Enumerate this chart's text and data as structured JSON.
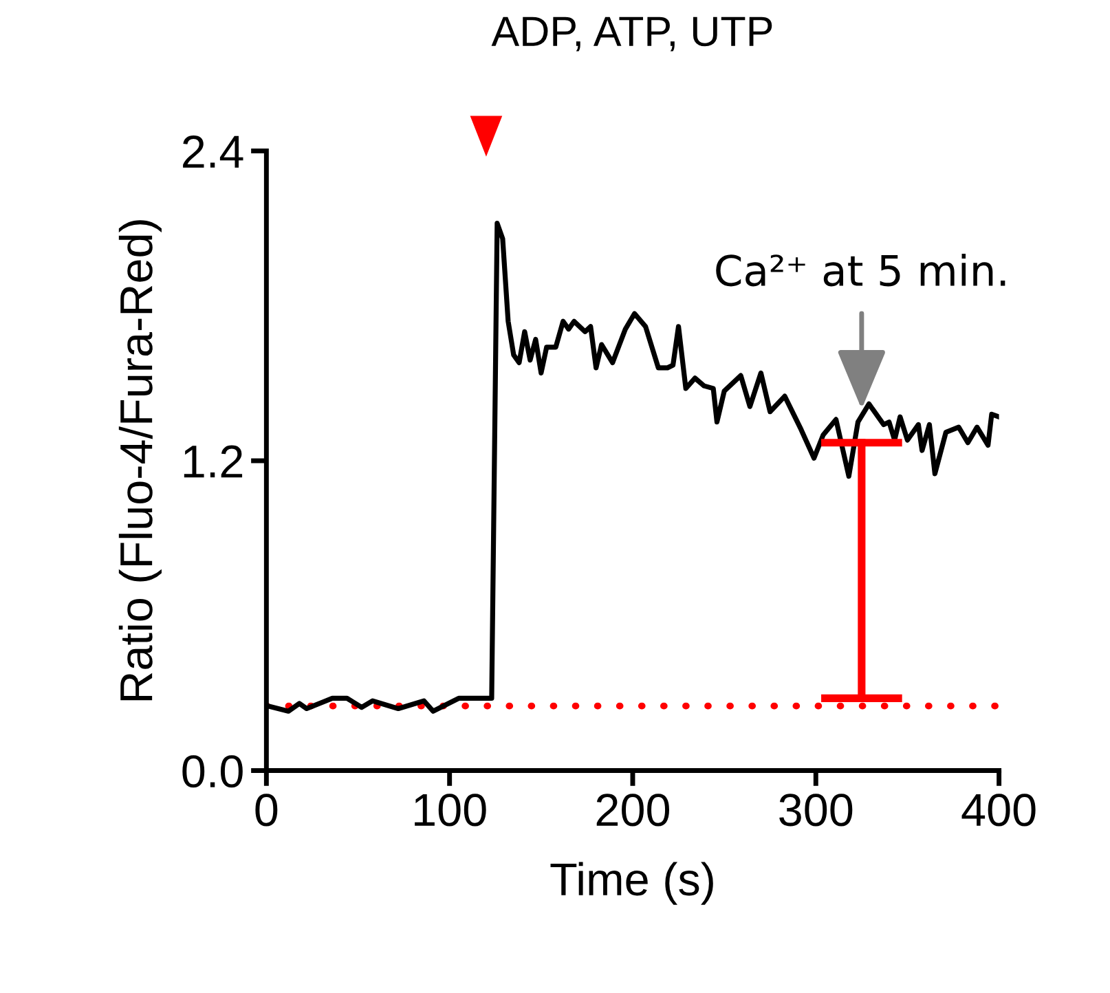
{
  "chart_data": {
    "type": "line",
    "title": "ADP, ATP, UTP",
    "xlabel": "Time (s)",
    "ylabel": "Ratio (Fluo-4/Fura-Red)",
    "xlim": [
      0,
      400
    ],
    "xticks": [
      0,
      100,
      200,
      300,
      400
    ],
    "ylim": [
      0,
      2.4
    ],
    "yticks": [
      {
        "value": 0,
        "label": "0.0"
      },
      {
        "value": 1.2,
        "label": "1.2"
      },
      {
        "value": 2.4,
        "label": "2.4"
      }
    ],
    "grid": false,
    "legend": false,
    "marker": "none",
    "line_style": "solid",
    "series": [
      {
        "color": "#000000",
        "x": [
          1,
          12,
          18,
          22,
          36,
          44,
          52,
          58,
          72,
          86,
          91,
          105,
          122,
          123,
          126,
          129,
          132,
          135,
          138,
          141,
          144,
          147,
          150,
          153,
          158,
          162,
          165,
          168,
          174,
          177,
          180,
          183,
          189,
          196,
          201,
          207,
          214,
          219,
          222,
          225,
          229,
          234,
          239,
          244,
          246,
          250,
          259,
          264,
          270,
          275,
          283,
          292,
          299,
          304,
          311,
          318,
          323,
          329,
          337,
          340,
          343,
          346,
          350,
          356,
          358,
          362,
          365,
          371,
          378,
          383,
          388,
          394,
          396,
          400
        ],
        "values": [
          0.25,
          0.23,
          0.26,
          0.24,
          0.28,
          0.28,
          0.245,
          0.27,
          0.24,
          0.27,
          0.23,
          0.28,
          0.28,
          0.28,
          2.12,
          2.06,
          1.74,
          1.61,
          1.58,
          1.7,
          1.59,
          1.67,
          1.54,
          1.64,
          1.64,
          1.74,
          1.71,
          1.74,
          1.7,
          1.72,
          1.56,
          1.65,
          1.58,
          1.71,
          1.77,
          1.72,
          1.56,
          1.56,
          1.57,
          1.72,
          1.48,
          1.52,
          1.49,
          1.48,
          1.35,
          1.47,
          1.53,
          1.41,
          1.54,
          1.39,
          1.45,
          1.32,
          1.21,
          1.3,
          1.36,
          1.14,
          1.35,
          1.42,
          1.34,
          1.35,
          1.28,
          1.37,
          1.28,
          1.34,
          1.24,
          1.34,
          1.15,
          1.31,
          1.33,
          1.27,
          1.33,
          1.26,
          1.38,
          1.37
        ]
      },
      {
        "color": "#ff0000",
        "x": [
          325,
          325
        ],
        "values": [
          0.28,
          1.27
        ]
      }
    ],
    "ref_lines": [
      {
        "axis": "y",
        "value": 0.25,
        "color": "#ff0000",
        "line_style": "dotted"
      }
    ],
    "annotations": [
      {
        "text": "Ca²⁺ at 5 min.",
        "x": 325,
        "y": 1.4
      }
    ]
  }
}
